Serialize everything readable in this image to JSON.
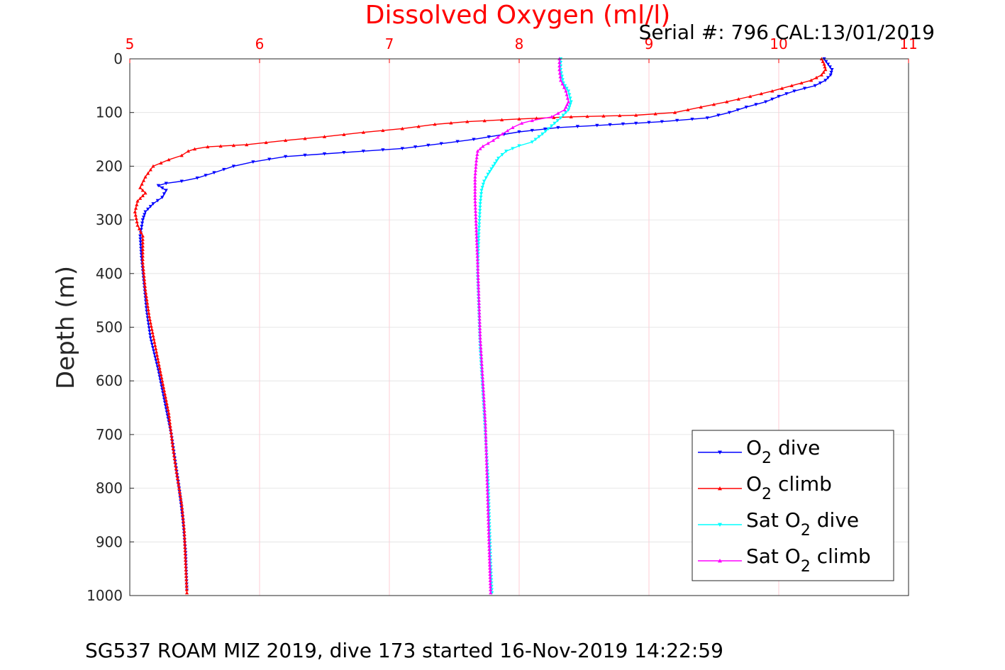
{
  "chart_data": {
    "type": "line",
    "title": "Dissolved Oxygen (ml/l)",
    "subtitle": "Serial #: 796  CAL:13/01/2019",
    "ylabel": "Depth (m)",
    "xlabel": "",
    "footer": "SG537 ROAM MIZ 2019, dive 173 started 16-Nov-2019 14:22:59",
    "xlim": [
      5,
      11
    ],
    "ylim": [
      0,
      1000
    ],
    "y_reversed": true,
    "x_axis_position": "top",
    "grid": true,
    "legend_position": "bottom-right",
    "x_ticks": [
      "5",
      "6",
      "7",
      "8",
      "9",
      "10",
      "11"
    ],
    "y_ticks": [
      "0",
      "100",
      "200",
      "300",
      "400",
      "500",
      "600",
      "700",
      "800",
      "900",
      "1000"
    ],
    "colors": {
      "axis_tick_labels_x": "#ff0000",
      "title": "#ff0000",
      "grid_x": "#ffc0cb",
      "grid_y": "#e0e0e0"
    },
    "series": [
      {
        "name": "O2 dive",
        "legend": [
          "O",
          "2",
          " dive"
        ],
        "color": "#0000ff",
        "marker": "triangle-down",
        "points": [
          [
            10.35,
            0
          ],
          [
            10.38,
            10
          ],
          [
            10.41,
            20
          ],
          [
            10.4,
            30
          ],
          [
            10.36,
            40
          ],
          [
            10.28,
            50
          ],
          [
            10.12,
            60
          ],
          [
            10.0,
            70
          ],
          [
            9.9,
            80
          ],
          [
            9.75,
            90
          ],
          [
            9.62,
            100
          ],
          [
            9.45,
            110
          ],
          [
            9.1,
            117
          ],
          [
            8.9,
            120
          ],
          [
            8.6,
            124
          ],
          [
            8.3,
            128
          ],
          [
            8.0,
            136
          ],
          [
            7.65,
            150
          ],
          [
            7.4,
            158
          ],
          [
            7.1,
            167
          ],
          [
            6.8,
            172
          ],
          [
            6.5,
            177
          ],
          [
            6.2,
            182
          ],
          [
            5.95,
            192
          ],
          [
            5.8,
            200
          ],
          [
            5.65,
            212
          ],
          [
            5.52,
            222
          ],
          [
            5.4,
            228
          ],
          [
            5.28,
            232
          ],
          [
            5.22,
            236
          ],
          [
            5.28,
            245
          ],
          [
            5.25,
            258
          ],
          [
            5.18,
            270
          ],
          [
            5.12,
            285
          ],
          [
            5.1,
            300
          ],
          [
            5.08,
            330
          ],
          [
            5.09,
            370
          ],
          [
            5.11,
            420
          ],
          [
            5.13,
            470
          ],
          [
            5.16,
            520
          ],
          [
            5.22,
            580
          ],
          [
            5.27,
            640
          ],
          [
            5.32,
            700
          ],
          [
            5.35,
            750
          ],
          [
            5.38,
            800
          ],
          [
            5.41,
            860
          ],
          [
            5.43,
            920
          ],
          [
            5.44,
            990
          ]
        ]
      },
      {
        "name": "O2 climb",
        "legend": [
          "O",
          "2",
          " climb"
        ],
        "color": "#ff0000",
        "marker": "triangle-up",
        "points": [
          [
            10.33,
            0
          ],
          [
            10.35,
            10
          ],
          [
            10.36,
            20
          ],
          [
            10.33,
            30
          ],
          [
            10.25,
            40
          ],
          [
            10.1,
            50
          ],
          [
            9.95,
            60
          ],
          [
            9.78,
            70
          ],
          [
            9.6,
            80
          ],
          [
            9.4,
            90
          ],
          [
            9.2,
            100
          ],
          [
            8.9,
            105
          ],
          [
            8.4,
            108
          ],
          [
            8.0,
            112
          ],
          [
            7.6,
            117
          ],
          [
            7.35,
            122
          ],
          [
            7.1,
            130
          ],
          [
            6.8,
            137
          ],
          [
            6.5,
            145
          ],
          [
            6.2,
            152
          ],
          [
            5.9,
            160
          ],
          [
            5.6,
            164
          ],
          [
            5.5,
            168
          ],
          [
            5.45,
            172
          ],
          [
            5.4,
            180
          ],
          [
            5.3,
            188
          ],
          [
            5.18,
            200
          ],
          [
            5.12,
            220
          ],
          [
            5.08,
            240
          ],
          [
            5.12,
            250
          ],
          [
            5.06,
            265
          ],
          [
            5.04,
            285
          ],
          [
            5.06,
            310
          ],
          [
            5.1,
            330
          ],
          [
            5.1,
            380
          ],
          [
            5.12,
            430
          ],
          [
            5.15,
            480
          ],
          [
            5.2,
            540
          ],
          [
            5.25,
            600
          ],
          [
            5.3,
            660
          ],
          [
            5.33,
            720
          ],
          [
            5.36,
            770
          ],
          [
            5.4,
            830
          ],
          [
            5.42,
            880
          ],
          [
            5.43,
            940
          ],
          [
            5.44,
            995
          ]
        ]
      },
      {
        "name": "Sat O2 dive",
        "legend": [
          "Sat O",
          "2",
          " dive"
        ],
        "color": "#00ffff",
        "marker": "triangle-down",
        "points": [
          [
            8.32,
            0
          ],
          [
            8.32,
            20
          ],
          [
            8.34,
            45
          ],
          [
            8.38,
            60
          ],
          [
            8.4,
            80
          ],
          [
            8.38,
            95
          ],
          [
            8.32,
            110
          ],
          [
            8.25,
            125
          ],
          [
            8.18,
            140
          ],
          [
            8.1,
            155
          ],
          [
            8.0,
            162
          ],
          [
            7.9,
            172
          ],
          [
            7.84,
            185
          ],
          [
            7.8,
            200
          ],
          [
            7.76,
            215
          ],
          [
            7.73,
            228
          ],
          [
            7.71,
            245
          ],
          [
            7.7,
            270
          ],
          [
            7.69,
            320
          ],
          [
            7.68,
            400
          ],
          [
            7.69,
            470
          ],
          [
            7.7,
            540
          ],
          [
            7.72,
            620
          ],
          [
            7.74,
            700
          ],
          [
            7.76,
            780
          ],
          [
            7.77,
            860
          ],
          [
            7.78,
            940
          ],
          [
            7.79,
            995
          ]
        ]
      },
      {
        "name": "Sat O2 climb",
        "legend": [
          "Sat O",
          "2",
          " climb"
        ],
        "color": "#ff00ff",
        "marker": "triangle-up",
        "points": [
          [
            8.31,
            0
          ],
          [
            8.31,
            20
          ],
          [
            8.32,
            40
          ],
          [
            8.36,
            60
          ],
          [
            8.38,
            80
          ],
          [
            8.35,
            95
          ],
          [
            8.25,
            108
          ],
          [
            8.1,
            115
          ],
          [
            8.02,
            120
          ],
          [
            7.95,
            128
          ],
          [
            7.87,
            140
          ],
          [
            7.8,
            152
          ],
          [
            7.72,
            163
          ],
          [
            7.68,
            172
          ],
          [
            7.67,
            190
          ],
          [
            7.66,
            220
          ],
          [
            7.66,
            260
          ],
          [
            7.67,
            320
          ],
          [
            7.68,
            380
          ],
          [
            7.69,
            450
          ],
          [
            7.7,
            520
          ],
          [
            7.72,
            600
          ],
          [
            7.74,
            680
          ],
          [
            7.75,
            760
          ],
          [
            7.76,
            840
          ],
          [
            7.77,
            920
          ],
          [
            7.78,
            995
          ]
        ]
      }
    ]
  }
}
